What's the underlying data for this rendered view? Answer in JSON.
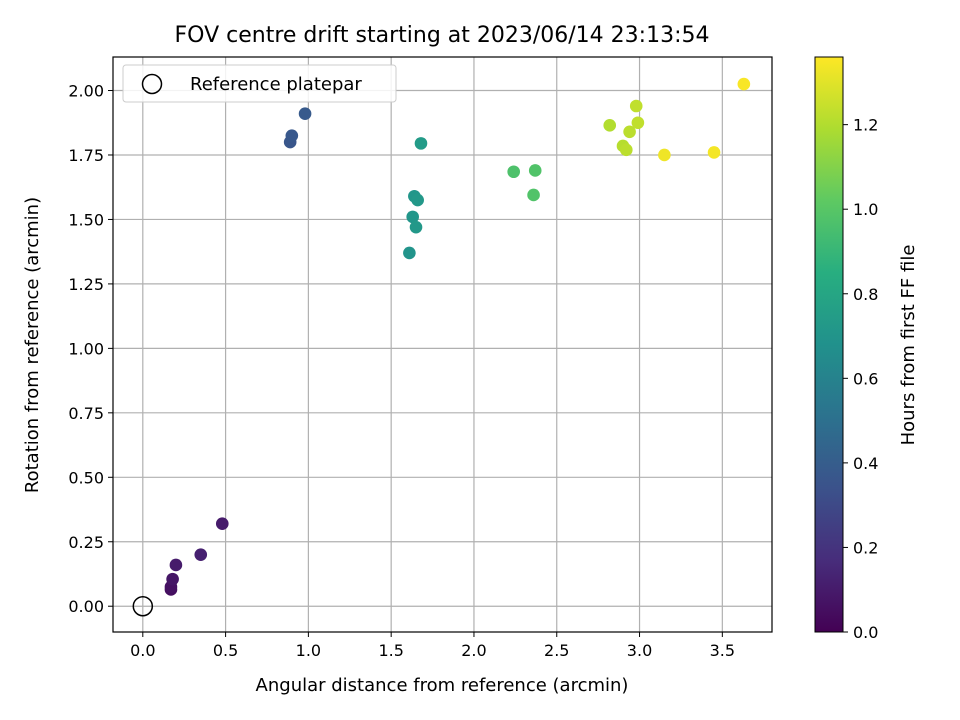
{
  "chart_data": {
    "type": "scatter",
    "title": "FOV centre drift starting at 2023/06/14 23:13:54",
    "xlabel": "Angular distance from reference (arcmin)",
    "ylabel": "Rotation from reference (arcmin)",
    "xlim": [
      -0.18,
      3.8
    ],
    "ylim": [
      -0.1,
      2.13
    ],
    "xticks": [
      0.0,
      0.5,
      1.0,
      1.5,
      2.0,
      2.5,
      3.0,
      3.5
    ],
    "xtick_labels": [
      "0.0",
      "0.5",
      "1.0",
      "1.5",
      "2.0",
      "2.5",
      "3.0",
      "3.5"
    ],
    "yticks": [
      0.0,
      0.25,
      0.5,
      0.75,
      1.0,
      1.25,
      1.5,
      1.75,
      2.0
    ],
    "ytick_labels": [
      "0.00",
      "0.25",
      "0.50",
      "0.75",
      "1.00",
      "1.25",
      "1.50",
      "1.75",
      "2.00"
    ],
    "grid": true,
    "colorbar": {
      "label": "Hours from first FF file",
      "range": [
        0.0,
        1.36
      ],
      "ticks": [
        0.0,
        0.2,
        0.4,
        0.6,
        0.8,
        1.0,
        1.2
      ],
      "tick_labels": [
        "0.0",
        "0.2",
        "0.4",
        "0.6",
        "0.8",
        "1.0",
        "1.2"
      ],
      "colormap": "viridis"
    },
    "legend": {
      "location": "upper-left",
      "entries": [
        {
          "label": "Reference platepar",
          "marker": "hollow-circle",
          "color": "#000000"
        }
      ]
    },
    "reference_point": {
      "x": 0.0,
      "y": 0.0
    },
    "points": [
      {
        "x": 0.17,
        "y": 0.065,
        "t": 0.05
      },
      {
        "x": 0.17,
        "y": 0.075,
        "t": 0.06
      },
      {
        "x": 0.18,
        "y": 0.105,
        "t": 0.08
      },
      {
        "x": 0.2,
        "y": 0.16,
        "t": 0.1
      },
      {
        "x": 0.35,
        "y": 0.2,
        "t": 0.12
      },
      {
        "x": 0.48,
        "y": 0.32,
        "t": 0.1
      },
      {
        "x": 0.89,
        "y": 1.8,
        "t": 0.36
      },
      {
        "x": 0.9,
        "y": 1.825,
        "t": 0.37
      },
      {
        "x": 0.98,
        "y": 1.91,
        "t": 0.38
      },
      {
        "x": 1.61,
        "y": 1.37,
        "t": 0.7
      },
      {
        "x": 1.63,
        "y": 1.51,
        "t": 0.71
      },
      {
        "x": 1.64,
        "y": 1.59,
        "t": 0.71
      },
      {
        "x": 1.65,
        "y": 1.47,
        "t": 0.72
      },
      {
        "x": 1.66,
        "y": 1.575,
        "t": 0.72
      },
      {
        "x": 1.68,
        "y": 1.795,
        "t": 0.74
      },
      {
        "x": 2.24,
        "y": 1.685,
        "t": 0.97
      },
      {
        "x": 2.36,
        "y": 1.595,
        "t": 0.98
      },
      {
        "x": 2.37,
        "y": 1.69,
        "t": 0.98
      },
      {
        "x": 2.82,
        "y": 1.865,
        "t": 1.2
      },
      {
        "x": 2.9,
        "y": 1.785,
        "t": 1.21
      },
      {
        "x": 2.92,
        "y": 1.77,
        "t": 1.22
      },
      {
        "x": 2.94,
        "y": 1.84,
        "t": 1.22
      },
      {
        "x": 2.98,
        "y": 1.94,
        "t": 1.23
      },
      {
        "x": 2.99,
        "y": 1.875,
        "t": 1.23
      },
      {
        "x": 3.15,
        "y": 1.75,
        "t": 1.33
      },
      {
        "x": 3.45,
        "y": 1.76,
        "t": 1.34
      },
      {
        "x": 3.63,
        "y": 2.025,
        "t": 1.35
      }
    ],
    "colors": {
      "grid": "#b0b0b0",
      "axes": "#000000",
      "legend_frame": "#cccccc"
    }
  }
}
